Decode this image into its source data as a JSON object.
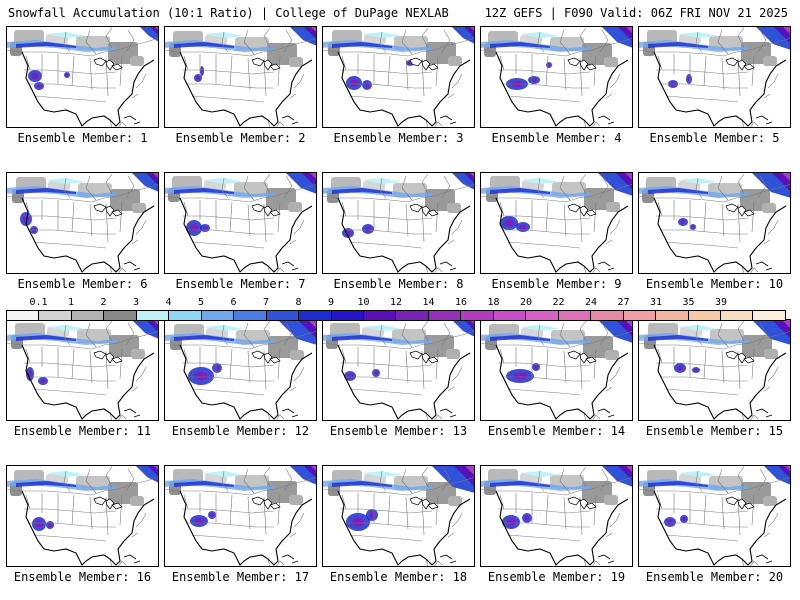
{
  "header": {
    "title": "Snowfall Accumulation (10:1 Ratio) | College of DuPage NEXLAB",
    "run_info": "12Z GEFS | F090 Valid: 06Z FRI NOV 21 2025"
  },
  "colorbar": {
    "labels": [
      "0.1",
      "1",
      "2",
      "3",
      "4",
      "5",
      "6",
      "7",
      "8",
      "9",
      "10",
      "12",
      "14",
      "16",
      "18",
      "20",
      "22",
      "24",
      "27",
      "31",
      "35",
      "39"
    ],
    "colors": [
      "#f4f4f4",
      "#d2d2d2",
      "#b2b2b2",
      "#8a8a8a",
      "#bff2f6",
      "#8fd8f4",
      "#6fa8ee",
      "#4a7de6",
      "#2f52d8",
      "#1d2bd0",
      "#2413c8",
      "#5a0fb8",
      "#7a22b8",
      "#9530b8",
      "#b23cc0",
      "#c84ec8",
      "#d760c4",
      "#e070b8",
      "#e889a8",
      "#ef9fa6",
      "#f2b7a0",
      "#f5c9a4",
      "#f8dcc0",
      "#fbeedd"
    ]
  },
  "panels": [
    {
      "label": "Ensemble Member: 1"
    },
    {
      "label": "Ensemble Member: 2"
    },
    {
      "label": "Ensemble Member: 3"
    },
    {
      "label": "Ensemble Member: 4"
    },
    {
      "label": "Ensemble Member: 5"
    },
    {
      "label": "Ensemble Member: 6"
    },
    {
      "label": "Ensemble Member: 7"
    },
    {
      "label": "Ensemble Member: 8"
    },
    {
      "label": "Ensemble Member: 9"
    },
    {
      "label": "Ensemble Member: 10"
    },
    {
      "label": "Ensemble Member: 11"
    },
    {
      "label": "Ensemble Member: 12"
    },
    {
      "label": "Ensemble Member: 13"
    },
    {
      "label": "Ensemble Member: 14"
    },
    {
      "label": "Ensemble Member: 15"
    },
    {
      "label": "Ensemble Member: 16"
    },
    {
      "label": "Ensemble Member: 17"
    },
    {
      "label": "Ensemble Member: 18"
    },
    {
      "label": "Ensemble Member: 19"
    },
    {
      "label": "Ensemble Member: 20"
    }
  ]
}
